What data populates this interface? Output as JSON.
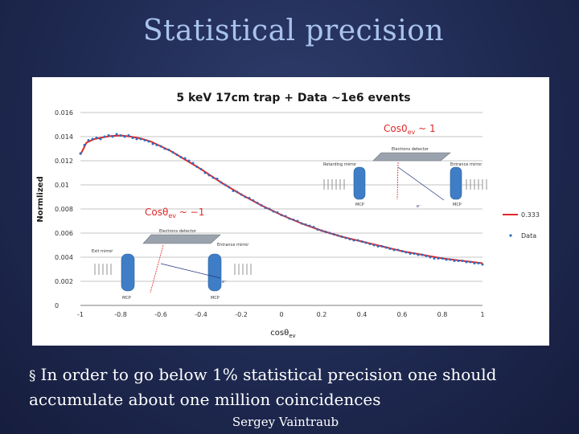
{
  "slide": {
    "title": "Statistical precision",
    "bullet_mark": "§",
    "bullet_text": "In order to go below 1% statistical precision one should accumulate about one million coincidences",
    "footer": "Sergey Vaintraub"
  },
  "chart_data": {
    "type": "scatter",
    "title": "5 keV 17cm trap + Data ~1e6 events",
    "xlabel": "cosθ",
    "xlabel_sub": "ev",
    "ylabel": "Normlized",
    "xlim": [
      -1,
      1
    ],
    "ylim": [
      0,
      0.016
    ],
    "x_ticks": [
      -1,
      -0.8,
      -0.6,
      -0.4,
      -0.2,
      0,
      0.2,
      0.4,
      0.6,
      0.8,
      1
    ],
    "x_tick_labels": [
      "-1",
      "-0.8",
      "-0.6",
      "-0.4",
      "-0.2",
      "0",
      "0.2",
      "0.4",
      "0.6",
      "0.8",
      "1"
    ],
    "y_ticks": [
      0,
      0.002,
      0.004,
      0.006,
      0.008,
      0.01,
      0.012,
      0.014,
      0.016
    ],
    "y_tick_labels": [
      "0",
      "0.002",
      "0.004",
      "0.006",
      "0.008",
      "0.01",
      "0.012",
      "0.014",
      "0.016"
    ],
    "grid": "horizontal",
    "legend": "right",
    "series": [
      {
        "name": "0.333",
        "kind": "line",
        "color": "#e02828",
        "x": [
          -1,
          -0.97,
          -0.93,
          -0.9,
          -0.85,
          -0.8,
          -0.75,
          -0.7,
          -0.65,
          -0.6,
          -0.55,
          -0.5,
          -0.45,
          -0.4,
          -0.3,
          -0.2,
          -0.1,
          0,
          0.1,
          0.2,
          0.3,
          0.4,
          0.5,
          0.6,
          0.7,
          0.8,
          0.9,
          1
        ],
        "y": [
          0.0125,
          0.0135,
          0.0138,
          0.0139,
          0.01405,
          0.0141,
          0.014,
          0.01385,
          0.0136,
          0.0132,
          0.0128,
          0.0123,
          0.0118,
          0.0113,
          0.0102,
          0.0092,
          0.0083,
          0.0075,
          0.0068,
          0.0062,
          0.0057,
          0.0053,
          0.0049,
          0.0045,
          0.0042,
          0.0039,
          0.0037,
          0.0035
        ]
      },
      {
        "name": "Data",
        "kind": "points",
        "color": "#2f6fc0",
        "x": [
          -1,
          -0.98,
          -0.96,
          -0.94,
          -0.92,
          -0.9,
          -0.88,
          -0.86,
          -0.84,
          -0.82,
          -0.8,
          -0.78,
          -0.76,
          -0.74,
          -0.72,
          -0.7,
          -0.68,
          -0.66,
          -0.64,
          -0.62,
          -0.6,
          -0.58,
          -0.56,
          -0.54,
          -0.52,
          -0.5,
          -0.48,
          -0.46,
          -0.44,
          -0.42,
          -0.4,
          -0.38,
          -0.36,
          -0.34,
          -0.32,
          -0.3,
          -0.28,
          -0.26,
          -0.24,
          -0.22,
          -0.2,
          -0.18,
          -0.16,
          -0.14,
          -0.12,
          -0.1,
          -0.08,
          -0.06,
          -0.04,
          -0.02,
          0,
          0.02,
          0.04,
          0.06,
          0.08,
          0.1,
          0.12,
          0.14,
          0.16,
          0.18,
          0.2,
          0.22,
          0.24,
          0.26,
          0.28,
          0.3,
          0.32,
          0.34,
          0.36,
          0.38,
          0.4,
          0.42,
          0.44,
          0.46,
          0.48,
          0.5,
          0.52,
          0.54,
          0.56,
          0.58,
          0.6,
          0.62,
          0.64,
          0.66,
          0.68,
          0.7,
          0.72,
          0.74,
          0.76,
          0.78,
          0.8,
          0.82,
          0.84,
          0.86,
          0.88,
          0.9,
          0.92,
          0.94,
          0.96,
          0.98,
          1
        ],
        "y": [
          0.0126,
          0.0133,
          0.0137,
          0.0138,
          0.0139,
          0.0138,
          0.014,
          0.0141,
          0.014,
          0.0142,
          0.0141,
          0.014,
          0.0141,
          0.0139,
          0.0138,
          0.0138,
          0.0137,
          0.0136,
          0.0134,
          0.0133,
          0.0132,
          0.013,
          0.0129,
          0.0127,
          0.0125,
          0.0123,
          0.0122,
          0.012,
          0.0118,
          0.0115,
          0.0113,
          0.011,
          0.0108,
          0.0106,
          0.0105,
          0.0102,
          0.01,
          0.0098,
          0.0095,
          0.0094,
          0.0092,
          0.009,
          0.0089,
          0.0087,
          0.0085,
          0.0083,
          0.0081,
          0.008,
          0.0078,
          0.0077,
          0.0075,
          0.0074,
          0.0072,
          0.0071,
          0.007,
          0.0068,
          0.0067,
          0.0066,
          0.0065,
          0.0063,
          0.0062,
          0.0061,
          0.006,
          0.0059,
          0.0058,
          0.0057,
          0.0056,
          0.0055,
          0.0054,
          0.0054,
          0.0053,
          0.0052,
          0.0051,
          0.005,
          0.0049,
          0.0049,
          0.0048,
          0.0047,
          0.0046,
          0.0046,
          0.0045,
          0.0044,
          0.0043,
          0.0043,
          0.0042,
          0.0042,
          0.0041,
          0.004,
          0.0039,
          0.0039,
          0.0039,
          0.0038,
          0.0038,
          0.0037,
          0.0037,
          0.0037,
          0.0036,
          0.0036,
          0.0035,
          0.0035,
          0.0034
        ]
      }
    ],
    "insets": [
      {
        "label": "Cos0",
        "label_sub": "ev",
        "label_suffix": " ~ 1",
        "left_component": "Retarding mirror",
        "top_component": "Electrons detector",
        "right_component": "Entrance mirror",
        "bottom_left": "MCP",
        "bottom_right": "MCP",
        "arrow_label": "e⁻",
        "color": "#e02828"
      },
      {
        "label": "Cosθ",
        "label_sub": "ev",
        "label_suffix": " ~ −1",
        "left_component": "Exit mirror",
        "top_component": "Electrons detector",
        "right_component": "Entrance mirror",
        "bottom_left": "MCP",
        "bottom_right": "MCP",
        "arrow_label": "e⁻",
        "color": "#e02828"
      }
    ]
  }
}
